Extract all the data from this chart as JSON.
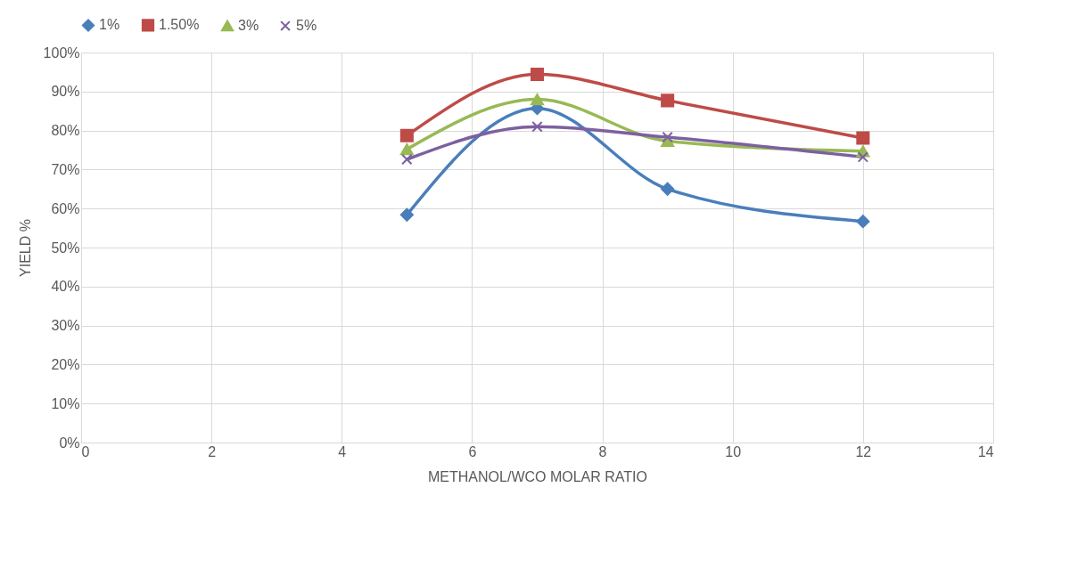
{
  "chart_data": {
    "type": "line",
    "xlabel": "METHANOL/WCO MOLAR RATIO",
    "ylabel": "YIELD %",
    "x": [
      5,
      7,
      9,
      12
    ],
    "series": [
      {
        "name": "1%",
        "color": "#4a7ebb",
        "marker": "diamond",
        "values": [
          58.4,
          85.7,
          65.0,
          56.7
        ]
      },
      {
        "name": "1.50%",
        "color": "#be4b48",
        "marker": "square",
        "values": [
          78.7,
          94.4,
          87.7,
          78.1
        ]
      },
      {
        "name": "3%",
        "color": "#98b954",
        "marker": "triangle",
        "values": [
          75.2,
          88.0,
          77.3,
          74.7
        ]
      },
      {
        "name": "5%",
        "color": "#7d60a0",
        "marker": "cross",
        "values": [
          72.6,
          81.0,
          78.3,
          73.2
        ]
      }
    ],
    "xlim": [
      0,
      14
    ],
    "xticks": [
      0,
      2,
      4,
      6,
      8,
      10,
      12,
      14
    ],
    "ylim": [
      0,
      100
    ],
    "yticks": [
      {
        "value": 0,
        "label": "0%"
      },
      {
        "value": 10,
        "label": "10%"
      },
      {
        "value": 20,
        "label": "20%"
      },
      {
        "value": 30,
        "label": "30%"
      },
      {
        "value": 40,
        "label": "40%"
      },
      {
        "value": 50,
        "label": "50%"
      },
      {
        "value": 60,
        "label": "60%"
      },
      {
        "value": 70,
        "label": "70%"
      },
      {
        "value": 80,
        "label": "80%"
      },
      {
        "value": 90,
        "label": "90%"
      },
      {
        "value": 100,
        "label": "100%"
      }
    ],
    "grid": true,
    "legend": "top",
    "line_style": "solid"
  }
}
